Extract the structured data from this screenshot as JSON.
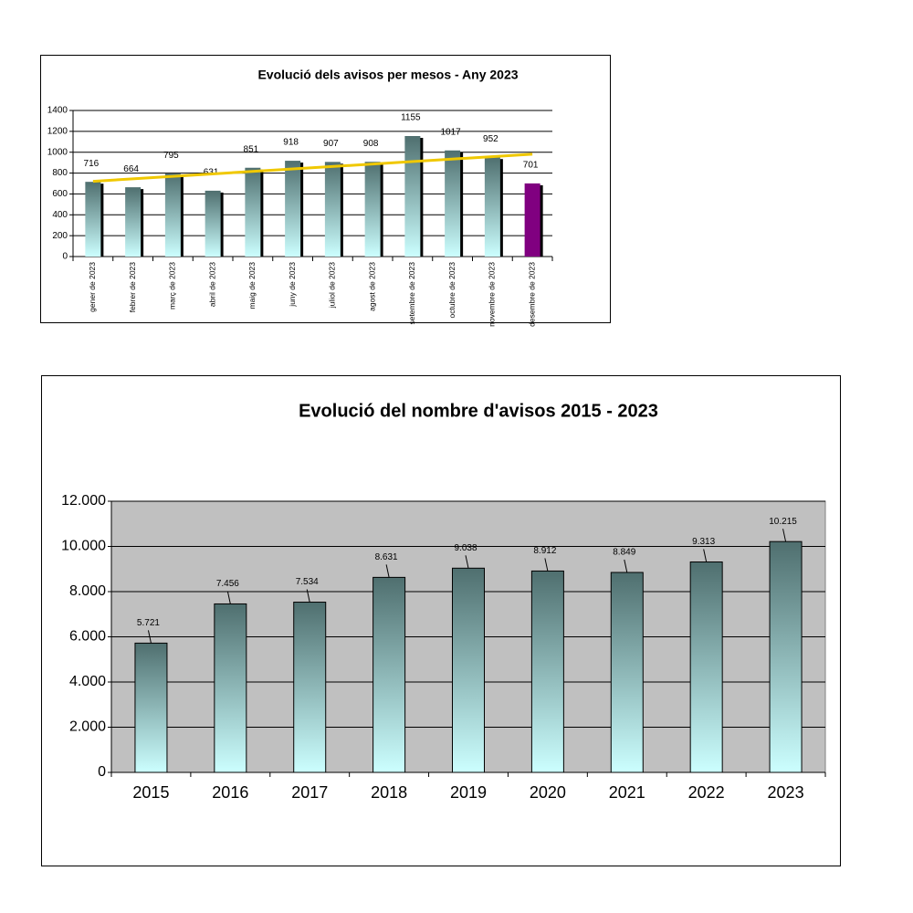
{
  "chart_data": [
    {
      "type": "bar",
      "title": "Evolució dels avisos per mesos - Any 2023",
      "categories": [
        "gener de 2023",
        "febrer de 2023",
        "març de 2023",
        "abril de 2023",
        "maig de 2023",
        "juny de 2023",
        "juliol de 2023",
        "agost de 2023",
        "setembre de 2023",
        "octubre de 2023",
        "novembre de 2023",
        "desembre de 2023"
      ],
      "values": [
        716,
        664,
        795,
        631,
        851,
        918,
        907,
        908,
        1155,
        1017,
        952,
        701
      ],
      "colors": [
        "#4f6f6f",
        "#4f6f6f",
        "#4f6f6f",
        "#4f6f6f",
        "#4f6f6f",
        "#4f6f6f",
        "#4f6f6f",
        "#4f6f6f",
        "#4f6f6f",
        "#4f6f6f",
        "#4f6f6f",
        "#800080"
      ],
      "gradient_to": [
        "#ccffff",
        "#ccffff",
        "#ccffff",
        "#ccffff",
        "#ccffff",
        "#ccffff",
        "#ccffff",
        "#ccffff",
        "#ccffff",
        "#ccffff",
        "#ccffff",
        "#800080"
      ],
      "ylim": [
        0,
        1400
      ],
      "yticks": [
        0,
        200,
        400,
        600,
        800,
        1000,
        1200,
        1400
      ],
      "grid": true,
      "trendline": true,
      "trendline_color": "#f0c800",
      "plot_background": "#ffffff"
    },
    {
      "type": "bar",
      "title": "Evolució del nombre d'avisos 2015 - 2023",
      "categories": [
        "2015",
        "2016",
        "2017",
        "2018",
        "2019",
        "2020",
        "2021",
        "2022",
        "2023"
      ],
      "values": [
        5721,
        7456,
        7534,
        8631,
        9038,
        8912,
        8849,
        9313,
        10215
      ],
      "value_labels": [
        "5.721",
        "7.456",
        "7.534",
        "8.631",
        "9.038",
        "8.912",
        "8.849",
        "9.313",
        "10.215"
      ],
      "colors": [
        "#4f6f6f",
        "#4f6f6f",
        "#4f6f6f",
        "#4f6f6f",
        "#4f6f6f",
        "#4f6f6f",
        "#4f6f6f",
        "#4f6f6f",
        "#4f6f6f"
      ],
      "gradient_to": [
        "#ccffff",
        "#ccffff",
        "#ccffff",
        "#ccffff",
        "#ccffff",
        "#ccffff",
        "#ccffff",
        "#ccffff",
        "#ccffff"
      ],
      "ylim": [
        0,
        12000
      ],
      "yticks": [
        0,
        {
          "value": 2000,
          "label": "2.000"
        },
        {
          "value": 4000,
          "label": "4.000"
        },
        {
          "value": 6000,
          "label": "6.000"
        },
        {
          "value": 8000,
          "label": "8.000"
        },
        {
          "value": 10000,
          "label": "10.000"
        },
        {
          "value": 12000,
          "label": "12.000"
        }
      ],
      "grid": true,
      "trendline": false,
      "plot_background": "#c0c0c0"
    }
  ]
}
